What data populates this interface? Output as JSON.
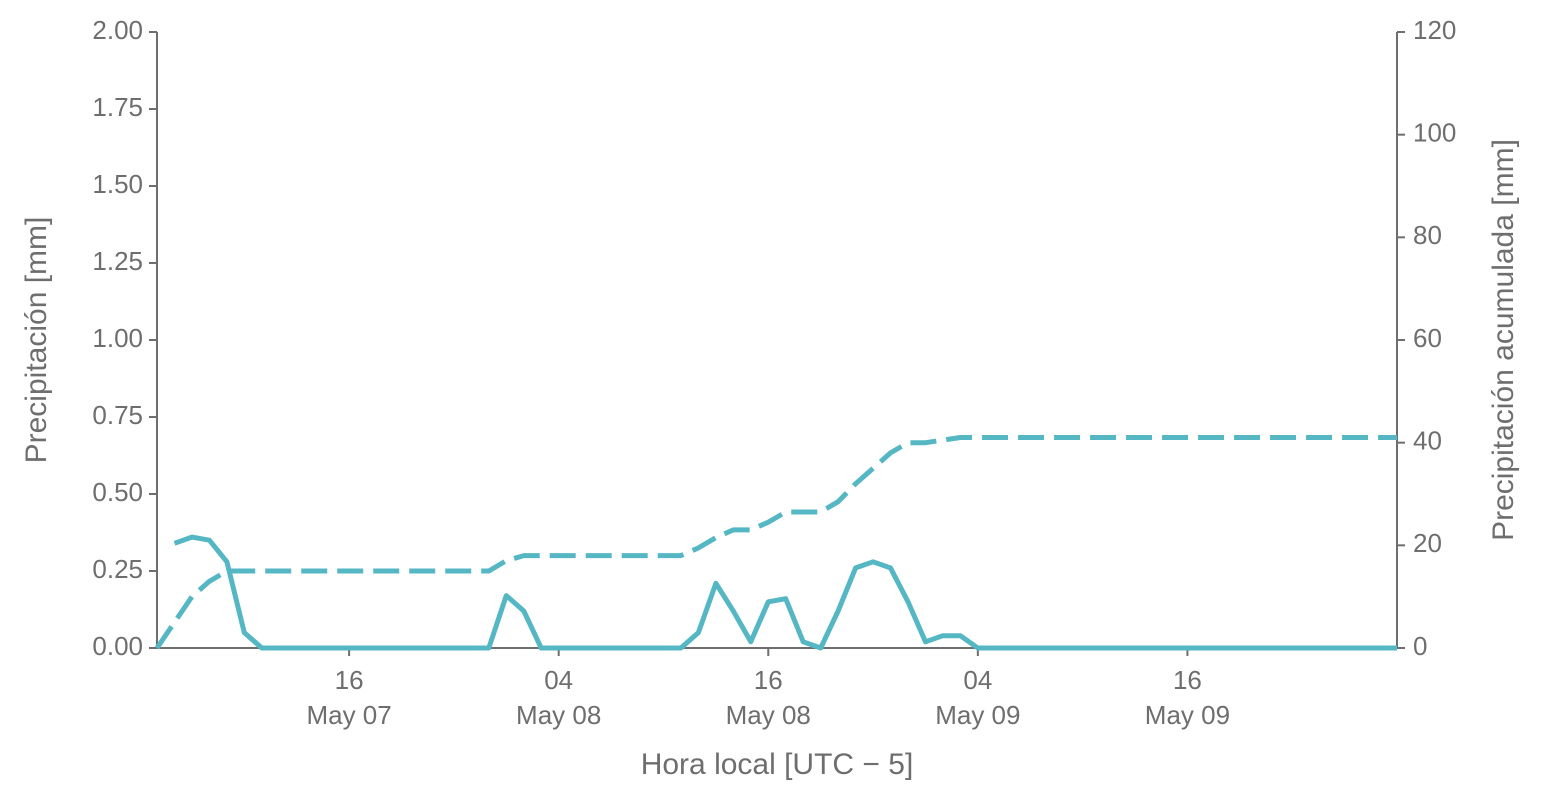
{
  "chart_data": {
    "type": "line",
    "xlabel": "Hora local [UTC − 5]",
    "ylabel": "Precipitación [mm]",
    "y2label": "Precipitación acumulada [mm]",
    "x": [
      "May 07 05:00",
      "May 07 06:00",
      "May 07 07:00",
      "May 07 08:00",
      "May 07 09:00",
      "May 07 10:00",
      "May 07 11:00",
      "May 07 12:00",
      "May 07 13:00",
      "May 07 14:00",
      "May 07 15:00",
      "May 07 16:00",
      "May 07 17:00",
      "May 07 18:00",
      "May 07 19:00",
      "May 07 20:00",
      "May 07 21:00",
      "May 07 22:00",
      "May 07 23:00",
      "May 08 00:00",
      "May 08 01:00",
      "May 08 02:00",
      "May 08 03:00",
      "May 08 04:00",
      "May 08 05:00",
      "May 08 06:00",
      "May 08 07:00",
      "May 08 08:00",
      "May 08 09:00",
      "May 08 10:00",
      "May 08 11:00",
      "May 08 12:00",
      "May 08 13:00",
      "May 08 14:00",
      "May 08 15:00",
      "May 08 16:00",
      "May 08 17:00",
      "May 08 18:00",
      "May 08 19:00",
      "May 08 20:00",
      "May 08 21:00",
      "May 08 22:00",
      "May 08 23:00",
      "May 09 00:00",
      "May 09 01:00",
      "May 09 02:00",
      "May 09 03:00",
      "May 09 04:00",
      "May 09 05:00",
      "May 09 06:00",
      "May 09 07:00",
      "May 09 08:00",
      "May 09 09:00",
      "May 09 10:00",
      "May 09 11:00",
      "May 09 12:00",
      "May 09 13:00",
      "May 09 14:00",
      "May 09 15:00",
      "May 09 16:00",
      "May 09 17:00",
      "May 09 18:00",
      "May 09 19:00",
      "May 09 20:00",
      "May 09 21:00",
      "May 09 22:00",
      "May 09 23:00",
      "May 10 00:00",
      "May 10 01:00",
      "May 10 02:00",
      "May 10 03:00",
      "May 10 04:00"
    ],
    "series": [
      {
        "color": "#55b7c4",
        "dash": "solid",
        "values": [
          null,
          0.34,
          0.36,
          0.35,
          0.28,
          0.05,
          0,
          0,
          0,
          0,
          0,
          0,
          0,
          0,
          0,
          0,
          0,
          0,
          0,
          0,
          0.17,
          0.12,
          0,
          0,
          0,
          0,
          0,
          0,
          0,
          0,
          0,
          0.05,
          0.21,
          0.12,
          0.02,
          0.15,
          0.16,
          0.02,
          0,
          0.12,
          0.26,
          0.28,
          0.26,
          0.15,
          0.02,
          0.04,
          0.04,
          0,
          0,
          0,
          0,
          0,
          0,
          0,
          0,
          0,
          0,
          0,
          0,
          0,
          0,
          0,
          0,
          0,
          0,
          0,
          0,
          0,
          0,
          0,
          0,
          0
        ]
      },
      {
        "color": "#55b7c4",
        "dash": "dashed",
        "axis": "y2",
        "values": [
          0,
          5,
          10,
          13,
          15,
          15,
          15,
          15,
          15,
          15,
          15,
          15,
          15,
          15,
          15,
          15,
          15,
          15,
          15,
          15,
          17,
          18,
          18,
          18,
          18,
          18,
          18,
          18,
          18,
          18,
          18,
          19.5,
          21.5,
          23,
          23,
          24.5,
          26.5,
          26.5,
          26.5,
          28.5,
          32,
          35,
          38,
          40,
          40,
          40.5,
          41,
          41,
          41,
          41,
          41,
          41,
          41,
          41,
          41,
          41,
          41,
          41,
          41,
          41,
          41,
          41,
          41,
          41,
          41,
          41,
          41,
          41,
          41,
          41,
          41,
          41
        ]
      }
    ],
    "xlim": [
      "May 07 05:00",
      "May 10 04:00"
    ],
    "xticks": [
      {
        "value": "May 07 16:00",
        "label": [
          "16",
          "May 07"
        ]
      },
      {
        "value": "May 08 04:00",
        "label": [
          "04",
          "May 08"
        ]
      },
      {
        "value": "May 08 16:00",
        "label": [
          "16",
          "May 08"
        ]
      },
      {
        "value": "May 09 04:00",
        "label": [
          "04",
          "May 09"
        ]
      },
      {
        "value": "May 09 16:00",
        "label": [
          "16",
          "May 09"
        ]
      }
    ],
    "ylim": [
      0,
      2
    ],
    "yticks": [
      {
        "value": 0,
        "label": "0.00"
      },
      {
        "value": 0.25,
        "label": "0.25"
      },
      {
        "value": 0.5,
        "label": "0.50"
      },
      {
        "value": 0.75,
        "label": "0.75"
      },
      {
        "value": 1,
        "label": "1.00"
      },
      {
        "value": 1.25,
        "label": "1.25"
      },
      {
        "value": 1.5,
        "label": "1.50"
      },
      {
        "value": 1.75,
        "label": "1.75"
      },
      {
        "value": 2,
        "label": "2.00"
      }
    ],
    "y2lim": [
      0,
      120
    ],
    "y2ticks": [
      0,
      20,
      40,
      60,
      80,
      100,
      120
    ],
    "grid": false
  }
}
